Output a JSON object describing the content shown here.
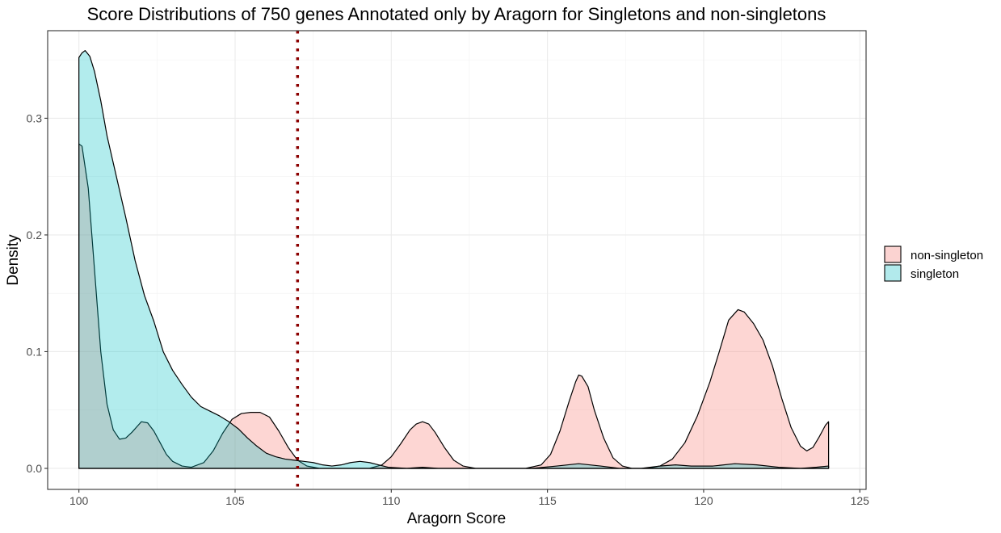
{
  "chart_data": {
    "type": "area",
    "title": "Score Distributions of 750 genes Annotated only by Aragorn for Singletons and non-singletons",
    "xlabel": "Aragorn Score",
    "ylabel": "Density",
    "xlim": [
      99,
      125.2
    ],
    "ylim": [
      -0.018,
      0.375
    ],
    "x_ticks": [
      100,
      105,
      110,
      115,
      120,
      125
    ],
    "x_tick_labels": [
      "100",
      "105",
      "110",
      "115",
      "120",
      "125"
    ],
    "y_ticks": [
      0.0,
      0.1,
      0.2,
      0.3
    ],
    "y_tick_labels": [
      "0.0",
      "0.1",
      "0.2",
      "0.3"
    ],
    "grid": true,
    "legend_position": "right",
    "reference_line": {
      "x": 107,
      "color": "#8b0000",
      "style": "dotted"
    },
    "series": [
      {
        "name": "non-singleton",
        "color": "#f8766d",
        "fill": "#fbd3d1",
        "points": [
          [
            100.0,
            0.278
          ],
          [
            100.1,
            0.276
          ],
          [
            100.3,
            0.24
          ],
          [
            100.5,
            0.17
          ],
          [
            100.7,
            0.1
          ],
          [
            100.9,
            0.055
          ],
          [
            101.1,
            0.033
          ],
          [
            101.3,
            0.025
          ],
          [
            101.5,
            0.026
          ],
          [
            101.7,
            0.031
          ],
          [
            101.9,
            0.037
          ],
          [
            102.0,
            0.04
          ],
          [
            102.2,
            0.039
          ],
          [
            102.4,
            0.032
          ],
          [
            102.6,
            0.022
          ],
          [
            102.8,
            0.012
          ],
          [
            103.0,
            0.006
          ],
          [
            103.3,
            0.002
          ],
          [
            103.6,
            0.001
          ],
          [
            104.0,
            0.005
          ],
          [
            104.3,
            0.015
          ],
          [
            104.6,
            0.03
          ],
          [
            104.9,
            0.042
          ],
          [
            105.2,
            0.047
          ],
          [
            105.5,
            0.048
          ],
          [
            105.8,
            0.048
          ],
          [
            106.1,
            0.044
          ],
          [
            106.4,
            0.032
          ],
          [
            106.7,
            0.018
          ],
          [
            107.0,
            0.007
          ],
          [
            107.3,
            0.002
          ],
          [
            107.7,
            0.0
          ],
          [
            108.3,
            0.0
          ],
          [
            108.8,
            0.0
          ],
          [
            109.3,
            0.0
          ],
          [
            109.7,
            0.003
          ],
          [
            110.0,
            0.01
          ],
          [
            110.3,
            0.021
          ],
          [
            110.6,
            0.033
          ],
          [
            110.8,
            0.038
          ],
          [
            111.0,
            0.04
          ],
          [
            111.2,
            0.038
          ],
          [
            111.4,
            0.031
          ],
          [
            111.7,
            0.018
          ],
          [
            112.0,
            0.007
          ],
          [
            112.3,
            0.002
          ],
          [
            112.7,
            0.0
          ],
          [
            113.5,
            0.0
          ],
          [
            114.3,
            0.0
          ],
          [
            114.8,
            0.003
          ],
          [
            115.1,
            0.012
          ],
          [
            115.4,
            0.032
          ],
          [
            115.7,
            0.058
          ],
          [
            115.9,
            0.074
          ],
          [
            116.0,
            0.08
          ],
          [
            116.1,
            0.079
          ],
          [
            116.3,
            0.07
          ],
          [
            116.5,
            0.05
          ],
          [
            116.8,
            0.026
          ],
          [
            117.1,
            0.009
          ],
          [
            117.4,
            0.002
          ],
          [
            117.7,
            0.0
          ],
          [
            118.2,
            0.0
          ],
          [
            118.6,
            0.002
          ],
          [
            119.0,
            0.008
          ],
          [
            119.4,
            0.022
          ],
          [
            119.8,
            0.045
          ],
          [
            120.2,
            0.074
          ],
          [
            120.5,
            0.1
          ],
          [
            120.8,
            0.127
          ],
          [
            121.1,
            0.136
          ],
          [
            121.3,
            0.134
          ],
          [
            121.6,
            0.124
          ],
          [
            121.9,
            0.11
          ],
          [
            122.2,
            0.088
          ],
          [
            122.5,
            0.06
          ],
          [
            122.8,
            0.035
          ],
          [
            123.1,
            0.019
          ],
          [
            123.3,
            0.015
          ],
          [
            123.5,
            0.018
          ],
          [
            123.7,
            0.027
          ],
          [
            123.9,
            0.037
          ],
          [
            124.0,
            0.04
          ]
        ]
      },
      {
        "name": "singleton",
        "color": "#00bfc4",
        "fill": "#b2eaec",
        "points": [
          [
            100.0,
            0.352
          ],
          [
            100.1,
            0.356
          ],
          [
            100.2,
            0.358
          ],
          [
            100.35,
            0.353
          ],
          [
            100.5,
            0.34
          ],
          [
            100.7,
            0.315
          ],
          [
            100.9,
            0.285
          ],
          [
            101.2,
            0.25
          ],
          [
            101.5,
            0.215
          ],
          [
            101.8,
            0.178
          ],
          [
            102.1,
            0.148
          ],
          [
            102.4,
            0.126
          ],
          [
            102.7,
            0.1
          ],
          [
            103.0,
            0.084
          ],
          [
            103.3,
            0.072
          ],
          [
            103.6,
            0.061
          ],
          [
            103.9,
            0.053
          ],
          [
            104.2,
            0.049
          ],
          [
            104.5,
            0.045
          ],
          [
            104.8,
            0.04
          ],
          [
            105.1,
            0.034
          ],
          [
            105.4,
            0.026
          ],
          [
            105.7,
            0.019
          ],
          [
            106.0,
            0.013
          ],
          [
            106.3,
            0.01
          ],
          [
            106.6,
            0.008
          ],
          [
            106.9,
            0.007
          ],
          [
            107.2,
            0.006
          ],
          [
            107.5,
            0.005
          ],
          [
            107.8,
            0.003
          ],
          [
            108.1,
            0.002
          ],
          [
            108.4,
            0.003
          ],
          [
            108.7,
            0.005
          ],
          [
            109.0,
            0.006
          ],
          [
            109.3,
            0.005
          ],
          [
            109.6,
            0.003
          ],
          [
            109.9,
            0.001
          ],
          [
            110.5,
            0.0
          ],
          [
            111.0,
            0.001
          ],
          [
            111.5,
            0.0
          ],
          [
            112.5,
            0.0
          ],
          [
            113.5,
            0.0
          ],
          [
            114.5,
            0.0
          ],
          [
            115.3,
            0.002
          ],
          [
            116.0,
            0.004
          ],
          [
            116.7,
            0.002
          ],
          [
            117.3,
            0.0
          ],
          [
            118.0,
            0.0
          ],
          [
            118.6,
            0.002
          ],
          [
            119.1,
            0.003
          ],
          [
            119.6,
            0.002
          ],
          [
            120.3,
            0.002
          ],
          [
            121.0,
            0.004
          ],
          [
            121.7,
            0.003
          ],
          [
            122.4,
            0.001
          ],
          [
            123.1,
            0.0
          ],
          [
            123.6,
            0.001
          ],
          [
            124.0,
            0.002
          ]
        ]
      }
    ]
  }
}
